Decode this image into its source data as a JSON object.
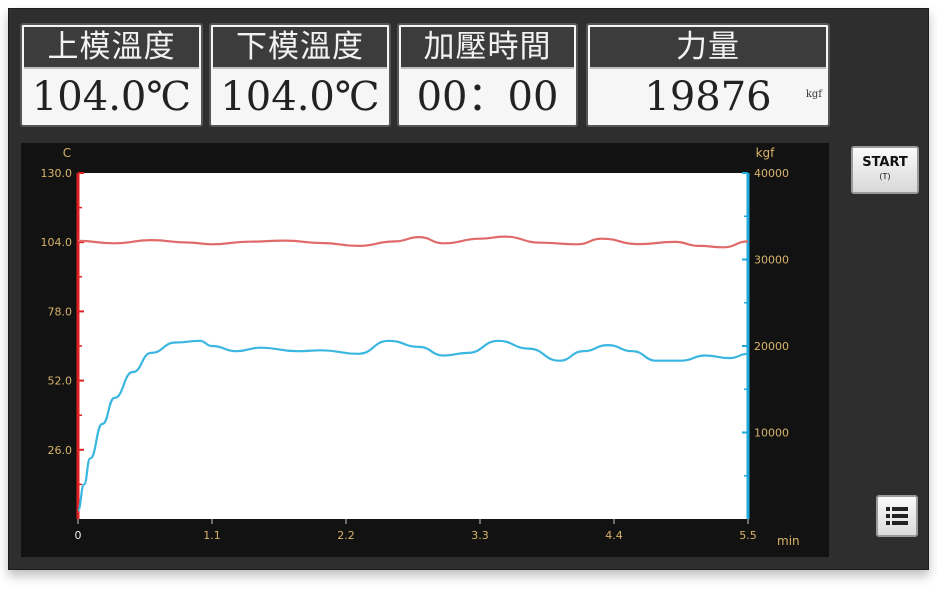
{
  "panels": [
    {
      "label": "上模溫度",
      "value": "104.0℃",
      "unit": ""
    },
    {
      "label": "下模溫度",
      "value": "104.0℃",
      "unit": ""
    },
    {
      "label": "加壓時間",
      "value": "00：00",
      "unit": ""
    },
    {
      "label": "力量",
      "value": "19876",
      "unit": "kgf"
    }
  ],
  "buttons": {
    "start_label": "START",
    "start_sub": "(T)",
    "menu_icon": "list-icon"
  },
  "colors": {
    "temperature_line": "#e06a6a",
    "force_line": "#3ab6e0",
    "left_axis": "#e02020",
    "right_axis": "#1ea8dc",
    "tick_labels": "#d8b36a"
  },
  "chart_data": {
    "type": "line",
    "x_unit_label": "min",
    "left_axis_label": "C",
    "right_axis_label": "kgf",
    "xlim": [
      0,
      5.5
    ],
    "x_ticks": [
      "0",
      "1.1",
      "2.2",
      "3.3",
      "4.4",
      "5.5"
    ],
    "left_ylim": [
      0,
      130
    ],
    "left_ticks": [
      "130.0",
      "104.0",
      "78.0",
      "52.0",
      "26.0"
    ],
    "right_ylim": [
      0,
      40000
    ],
    "right_ticks": [
      "40000",
      "30000",
      "20000",
      "10000"
    ],
    "series": [
      {
        "axis": "left",
        "x": [
          0,
          0.3,
          0.6,
          0.9,
          1.1,
          1.4,
          1.7,
          2.0,
          2.3,
          2.6,
          2.8,
          3.0,
          3.3,
          3.5,
          3.8,
          4.1,
          4.3,
          4.6,
          4.9,
          5.1,
          5.3,
          5.5
        ],
        "values": [
          104.5,
          103.6,
          104.8,
          103.9,
          103.2,
          104.2,
          104.6,
          103.7,
          102.6,
          104.3,
          105.9,
          103.6,
          105.3,
          106.1,
          103.8,
          103.2,
          105.3,
          103.3,
          104.1,
          102.6,
          102.1,
          104.3
        ]
      },
      {
        "axis": "right",
        "x": [
          0,
          0.05,
          0.1,
          0.2,
          0.3,
          0.45,
          0.6,
          0.8,
          1.0,
          1.1,
          1.3,
          1.5,
          1.8,
          2.0,
          2.3,
          2.55,
          2.8,
          3.0,
          3.2,
          3.45,
          3.7,
          3.95,
          4.15,
          4.35,
          4.55,
          4.75,
          4.95,
          5.15,
          5.35,
          5.5
        ],
        "values": [
          1000,
          4000,
          7000,
          11000,
          14000,
          17000,
          19200,
          20400,
          20600,
          20000,
          19400,
          19800,
          19400,
          19500,
          19100,
          20600,
          19900,
          18900,
          19200,
          20600,
          19700,
          18300,
          19400,
          20100,
          19400,
          18300,
          18300,
          18900,
          18600,
          19100
        ]
      }
    ]
  }
}
